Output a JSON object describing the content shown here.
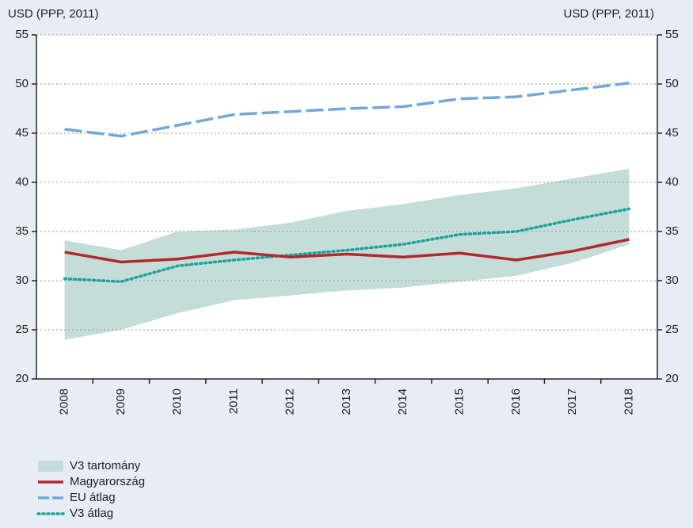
{
  "chart_data": {
    "type": "line",
    "y_label": "USD (PPP, 2011)",
    "y2_label": "USD (PPP, 2011)",
    "categories": [
      "2008",
      "2009",
      "2010",
      "2011",
      "2012",
      "2013",
      "2014",
      "2015",
      "2016",
      "2017",
      "2018"
    ],
    "band": {
      "name": "V3 tartomány",
      "color": "#c4ddd8",
      "lower": [
        24.0,
        25.0,
        26.7,
        28.0,
        28.5,
        29.0,
        29.3,
        29.9,
        30.5,
        31.8,
        33.7
      ],
      "upper": [
        34.1,
        33.1,
        35.0,
        35.2,
        35.9,
        37.1,
        37.8,
        38.7,
        39.4,
        40.4,
        41.4
      ]
    },
    "series": [
      {
        "name": "Magyarország",
        "color": "#b3282d",
        "style": "solid",
        "values": [
          32.9,
          31.9,
          32.2,
          32.9,
          32.4,
          32.7,
          32.4,
          32.8,
          32.1,
          33.0,
          34.2
        ]
      },
      {
        "name": "EU átlag",
        "color": "#72a7d9",
        "style": "dashed",
        "values": [
          45.4,
          44.7,
          45.8,
          46.9,
          47.2,
          47.5,
          47.7,
          48.5,
          48.7,
          49.4,
          50.1
        ]
      },
      {
        "name": "V3 átlag",
        "color": "#1aa39a",
        "style": "dotted",
        "values": [
          30.2,
          29.9,
          31.5,
          32.1,
          32.6,
          33.1,
          33.7,
          34.7,
          35.0,
          36.2,
          37.3
        ]
      }
    ],
    "ylim": [
      20,
      55
    ],
    "yticks": [
      20,
      25,
      30,
      35,
      40,
      45,
      50,
      55
    ],
    "y2lim": [
      20,
      55
    ],
    "y2ticks": [
      20,
      25,
      30,
      35,
      40,
      45,
      50,
      55
    ],
    "grid": true
  }
}
